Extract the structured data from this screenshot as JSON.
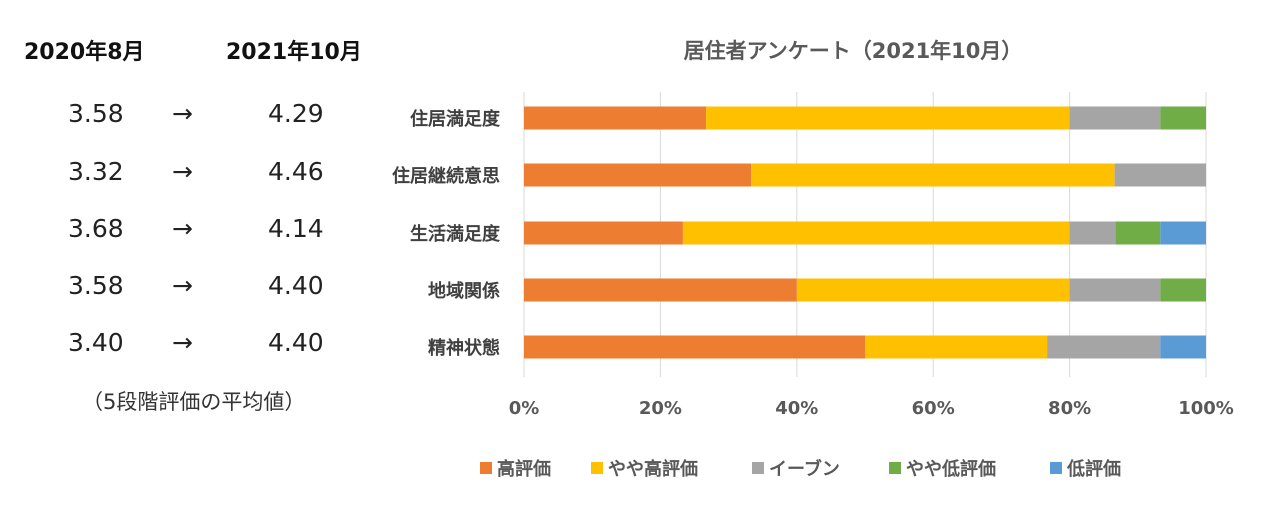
{
  "left_panel": {
    "header_before": "2020年8月",
    "header_after": "2021年10月",
    "arrow": "→",
    "rows": [
      {
        "before": "3.58",
        "after": "4.29"
      },
      {
        "before": "3.32",
        "after": "4.46"
      },
      {
        "before": "3.68",
        "after": "4.14"
      },
      {
        "before": "3.58",
        "after": "4.40"
      },
      {
        "before": "3.40",
        "after": "4.40"
      }
    ],
    "note": "（5段階評価の平均値）"
  },
  "chart_data": {
    "type": "bar",
    "orientation": "horizontal",
    "stacked": "percent",
    "title": "居住者アンケート（2021年10月）",
    "categories": [
      "住居満足度",
      "住居継続意思",
      "生活満足度",
      "地域関係",
      "精神状態"
    ],
    "series": [
      {
        "name": "高評価",
        "color": "#ED7D31",
        "values": [
          26.7,
          33.3,
          23.3,
          40.0,
          50.0
        ]
      },
      {
        "name": "やや高評価",
        "color": "#FFC000",
        "values": [
          53.3,
          53.3,
          56.7,
          40.0,
          26.7
        ]
      },
      {
        "name": "イーブン",
        "color": "#A5A5A5",
        "values": [
          13.3,
          13.4,
          6.7,
          13.3,
          16.6
        ]
      },
      {
        "name": "やや低評価",
        "color": "#70AD47",
        "values": [
          6.7,
          0,
          6.6,
          6.7,
          0
        ]
      },
      {
        "name": "低評価",
        "color": "#5B9BD5",
        "values": [
          0,
          0,
          6.7,
          0,
          6.7
        ]
      }
    ],
    "xlim": [
      0,
      100
    ],
    "xticks": [
      "0%",
      "20%",
      "40%",
      "60%",
      "80%",
      "100%"
    ],
    "grid": true,
    "legend": "bottom"
  }
}
